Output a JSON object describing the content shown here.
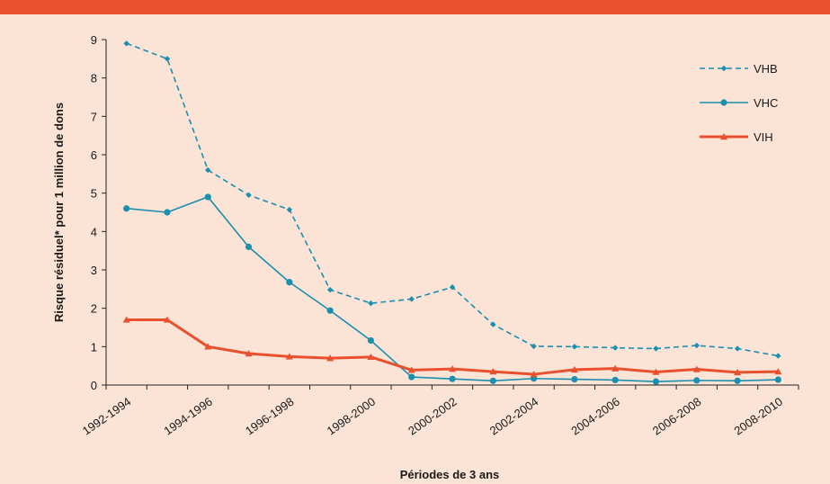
{
  "chart_data": {
    "type": "line",
    "xlabel": "Périodes de 3 ans",
    "ylabel": "Risque résiduel* pour 1 million de dons",
    "ylim": [
      0,
      9
    ],
    "yticks": [
      0,
      1,
      2,
      3,
      4,
      5,
      6,
      7,
      8,
      9
    ],
    "xtick_labels": [
      "1992-1994",
      "1994-1996",
      "1996-1998",
      "1998-2000",
      "2000-2002",
      "2002-2004",
      "2004-2006",
      "2006-2008",
      "2008-2010"
    ],
    "n_points": 17,
    "legend_position": "top-right",
    "grid": false,
    "series": [
      {
        "name": "VHB",
        "color": "#1a8fb0",
        "dashed": true,
        "marker": "diamond",
        "values": [
          8.9,
          8.5,
          5.6,
          4.95,
          4.57,
          2.48,
          2.13,
          2.24,
          2.55,
          1.58,
          1.01,
          1.0,
          0.97,
          0.95,
          1.03,
          0.95,
          0.76
        ]
      },
      {
        "name": "VHC",
        "color": "#1a8fb0",
        "dashed": false,
        "marker": "circle",
        "values": [
          4.6,
          4.5,
          4.9,
          3.6,
          2.68,
          1.94,
          1.16,
          0.21,
          0.16,
          0.11,
          0.17,
          0.15,
          0.13,
          0.09,
          0.12,
          0.11,
          0.14
        ]
      },
      {
        "name": "VIH",
        "color": "#e8502e",
        "dashed": false,
        "marker": "triangle",
        "values": [
          1.7,
          1.7,
          1.0,
          0.82,
          0.74,
          0.7,
          0.73,
          0.39,
          0.42,
          0.35,
          0.28,
          0.4,
          0.43,
          0.34,
          0.41,
          0.33,
          0.35
        ]
      }
    ]
  }
}
